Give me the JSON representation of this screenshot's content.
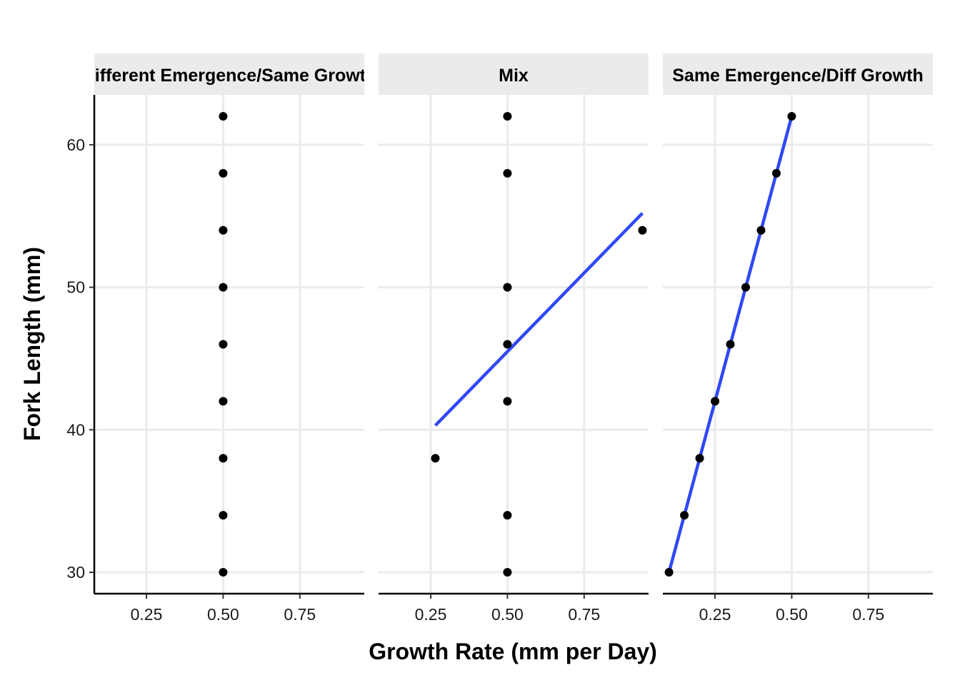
{
  "chart_data": {
    "type": "scatter",
    "xlabel": "Growth Rate (mm per Day)",
    "ylabel": "Fork Length (mm)",
    "xlim": [
      0.08,
      0.96
    ],
    "ylim": [
      28.5,
      63.5
    ],
    "x_ticks": [
      0.25,
      0.5,
      0.75
    ],
    "x_tick_labels": [
      "0.25",
      "0.50",
      "0.75"
    ],
    "y_ticks": [
      30,
      40,
      50,
      60
    ],
    "y_tick_labels": [
      "30",
      "40",
      "50",
      "60"
    ],
    "grid": true,
    "point_color": "#000000",
    "line_color": "#3048f5",
    "strip_bg": "#ebebeb",
    "gridline_color": "#ebebeb",
    "panels": [
      {
        "title": "Different Emergence/Same Growth",
        "points": [
          {
            "x": 0.5,
            "y": 30
          },
          {
            "x": 0.5,
            "y": 34
          },
          {
            "x": 0.5,
            "y": 38
          },
          {
            "x": 0.5,
            "y": 42
          },
          {
            "x": 0.5,
            "y": 46
          },
          {
            "x": 0.5,
            "y": 50
          },
          {
            "x": 0.5,
            "y": 54
          },
          {
            "x": 0.5,
            "y": 58
          },
          {
            "x": 0.5,
            "y": 62
          }
        ],
        "fit_line": null
      },
      {
        "title": "Mix",
        "points": [
          {
            "x": 0.5,
            "y": 30
          },
          {
            "x": 0.5,
            "y": 34
          },
          {
            "x": 0.265,
            "y": 38
          },
          {
            "x": 0.5,
            "y": 42
          },
          {
            "x": 0.5,
            "y": 46
          },
          {
            "x": 0.5,
            "y": 50
          },
          {
            "x": 0.94,
            "y": 54
          },
          {
            "x": 0.5,
            "y": 58
          },
          {
            "x": 0.5,
            "y": 62
          }
        ],
        "fit_line": {
          "x": [
            0.265,
            0.94
          ],
          "y": [
            40.3,
            55.2
          ]
        }
      },
      {
        "title": "Same Emergence/Diff Growth",
        "points": [
          {
            "x": 0.1,
            "y": 30
          },
          {
            "x": 0.15,
            "y": 34
          },
          {
            "x": 0.2,
            "y": 38
          },
          {
            "x": 0.25,
            "y": 42
          },
          {
            "x": 0.3,
            "y": 46
          },
          {
            "x": 0.35,
            "y": 50
          },
          {
            "x": 0.4,
            "y": 54
          },
          {
            "x": 0.45,
            "y": 58
          },
          {
            "x": 0.5,
            "y": 62
          }
        ],
        "fit_line": {
          "x": [
            0.1,
            0.5
          ],
          "y": [
            30,
            62
          ]
        }
      }
    ]
  }
}
